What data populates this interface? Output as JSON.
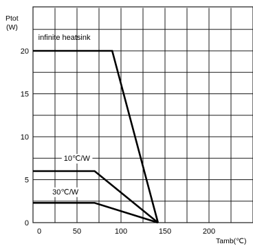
{
  "chart_data": {
    "type": "line",
    "ylabel_line1": "Ptot",
    "ylabel_line2": "(W)",
    "xlabel": "Tamb(℃)",
    "xlim": [
      0,
      250
    ],
    "ylim": [
      0,
      25
    ],
    "xticks": [
      0,
      50,
      100,
      150,
      200
    ],
    "yticks": [
      0,
      5,
      10,
      15,
      20
    ],
    "grid": true,
    "series": [
      {
        "name": "infinite heatsink",
        "x": [
          0,
          90,
          142
        ],
        "y": [
          20,
          20,
          0
        ]
      },
      {
        "name": "10℃/W",
        "x": [
          0,
          70,
          142
        ],
        "y": [
          6,
          6,
          0
        ]
      },
      {
        "name": "30℃/W",
        "x": [
          0,
          70,
          142
        ],
        "y": [
          2.3,
          2.3,
          0
        ]
      }
    ]
  }
}
